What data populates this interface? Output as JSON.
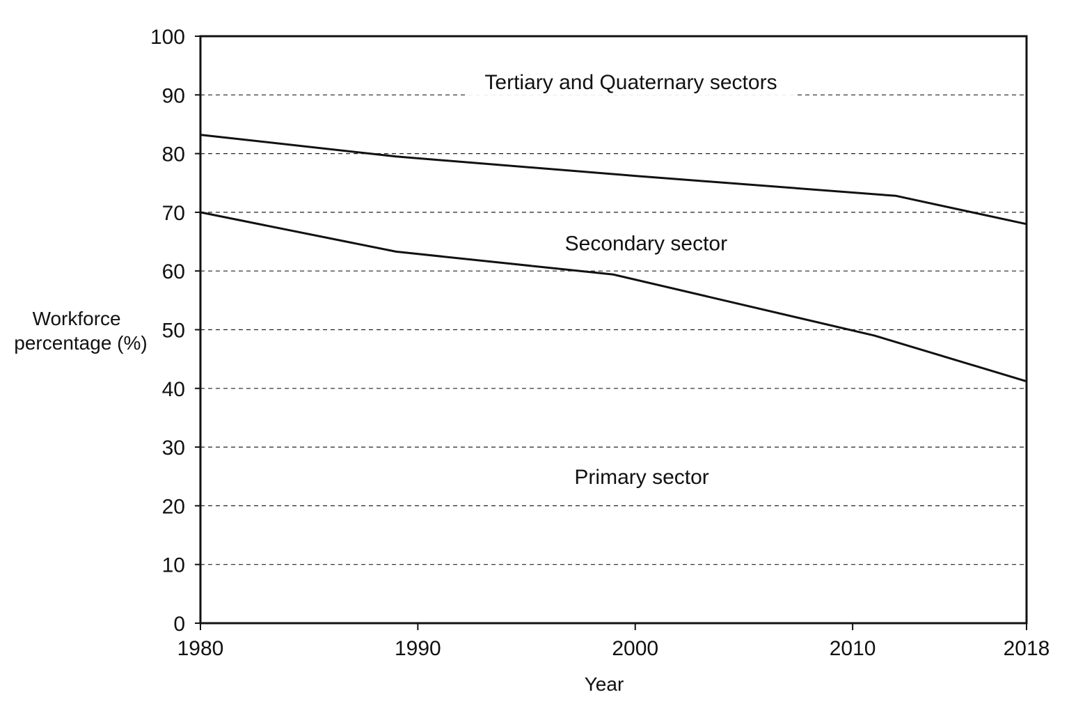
{
  "chart_data": {
    "type": "line",
    "xlabel": "Year",
    "ylabel_lines": [
      "Workforce",
      "percentage (%)"
    ],
    "xlim": [
      1980,
      2018
    ],
    "ylim": [
      0,
      100
    ],
    "x_ticks": [
      1980,
      1990,
      2000,
      2010,
      2018
    ],
    "y_ticks": [
      0,
      10,
      20,
      30,
      40,
      50,
      60,
      70,
      80,
      90,
      100
    ],
    "grid": true,
    "series": [
      {
        "x": [
          1980,
          1989,
          2000,
          2012,
          2018
        ],
        "values": [
          83.2,
          79.5,
          76.2,
          72.8,
          68.0
        ]
      },
      {
        "x": [
          1980,
          1989,
          1999,
          2011,
          2018
        ],
        "values": [
          70.0,
          63.3,
          59.4,
          49.0,
          41.2
        ]
      }
    ],
    "region_labels": [
      {
        "text": "Tertiary and Quaternary sectors",
        "x": 1999.8,
        "y": 91
      },
      {
        "text": "Secondary sector",
        "x": 2000.5,
        "y": 63.5
      },
      {
        "text": "Primary sector",
        "x": 2000.3,
        "y": 23.7
      }
    ]
  }
}
